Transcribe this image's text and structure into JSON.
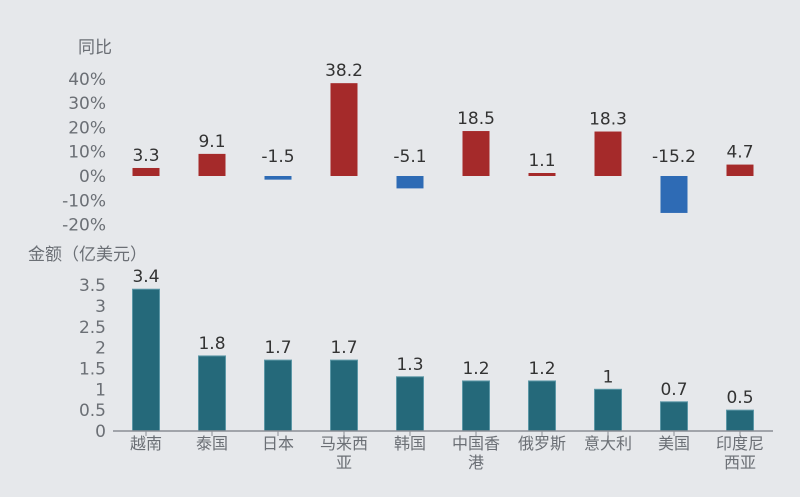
{
  "colors": {
    "background": "#e6e8eb",
    "positive": "#a52a2a",
    "negative": "#2e6bb5",
    "amount": "#25697a",
    "axis": "#8a8e94"
  },
  "chart_data": [
    {
      "type": "bar",
      "ylabel": "同比",
      "categories": [
        "越南",
        "泰国",
        "日本",
        "马来西亚",
        "韩国",
        "中国香港",
        "俄罗斯",
        "意大利",
        "美国",
        "印度尼西亚"
      ],
      "values": [
        3.3,
        9.1,
        -1.5,
        38.2,
        -5.1,
        18.5,
        1.1,
        18.3,
        -15.2,
        4.7
      ],
      "data_labels": [
        "3.3",
        "9.1",
        "-1.5",
        "38.2",
        "-5.1",
        "18.5",
        "1.1",
        "18.3",
        "-15.2",
        "4.7"
      ],
      "yticks": [
        "40%",
        "30%",
        "20%",
        "10%",
        "0%",
        "-10%",
        "-20%"
      ],
      "ytick_values": [
        40,
        30,
        20,
        10,
        0,
        -10,
        -20
      ],
      "ylim": [
        -20,
        40
      ],
      "grid": false
    },
    {
      "type": "bar",
      "ylabel": "金额（亿美元）",
      "categories": [
        "越南",
        "泰国",
        "日本",
        "马来西亚",
        "韩国",
        "中国香港",
        "俄罗斯",
        "意大利",
        "美国",
        "印度尼西亚"
      ],
      "values": [
        3.4,
        1.8,
        1.7,
        1.7,
        1.3,
        1.2,
        1.2,
        1,
        0.7,
        0.5
      ],
      "data_labels": [
        "3.4",
        "1.8",
        "1.7",
        "1.7",
        "1.3",
        "1.2",
        "1.2",
        "1",
        "0.7",
        "0.5"
      ],
      "yticks": [
        "3.5",
        "3",
        "2.5",
        "2",
        "1.5",
        "1",
        "0.5",
        "0"
      ],
      "ytick_values": [
        3.5,
        3,
        2.5,
        2,
        1.5,
        1,
        0.5,
        0
      ],
      "ylim": [
        0,
        3.5
      ],
      "grid": false
    }
  ]
}
